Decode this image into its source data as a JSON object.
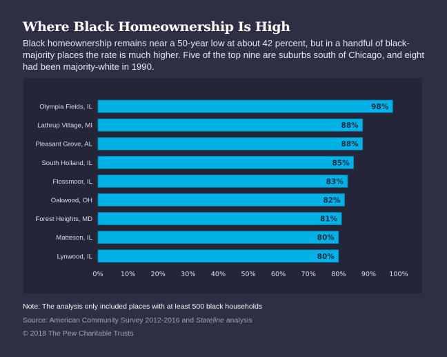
{
  "header": {
    "title": "Where Black Homeownership Is High",
    "subtitle": "Black homeownership remains near a 50-year low at about 42 percent, but in a handful of black-majority places the rate is much higher. Five of the top nine are suburbs south of Chicago, and eight had been majority-white in 1990."
  },
  "chart_data": {
    "type": "bar",
    "orientation": "horizontal",
    "title": "Where Black Homeownership Is High",
    "xlabel": "",
    "ylabel": "",
    "categories": [
      "Olympia Fields, IL",
      "Lathrup Village, MI",
      "Pleasant Grove, AL",
      "South Holland, IL",
      "Flossmoor, IL",
      "Oakwood, OH",
      "Forest Heights, MD",
      "Matteson, IL",
      "Lynwood, IL"
    ],
    "values": [
      98,
      88,
      88,
      85,
      83,
      82,
      81,
      80,
      80
    ],
    "value_labels": [
      "98%",
      "88%",
      "88%",
      "85%",
      "83%",
      "82%",
      "81%",
      "80%",
      "80%"
    ],
    "xlim": [
      0,
      100
    ],
    "x_ticks": [
      0,
      10,
      20,
      30,
      40,
      50,
      60,
      70,
      80,
      90,
      100
    ],
    "x_tick_labels": [
      "0%",
      "10%",
      "20%",
      "30%",
      "40%",
      "50%",
      "60%",
      "70%",
      "80%",
      "90%",
      "100%"
    ],
    "grid": false,
    "legend": "none",
    "colors": {
      "bar": "#00b2e5",
      "bar_edge": "#0a7fb0",
      "value_text": "#1d2b45",
      "panel": "#242539"
    }
  },
  "footer": {
    "note": "Note: The analysis only included places with at least 500 black households",
    "source_prefix": "Source: American Community Survey 2012-2016 and ",
    "source_italic": "Stateline",
    "source_suffix": " analysis",
    "copyright": "© 2018 The Pew Charitable Trusts"
  }
}
